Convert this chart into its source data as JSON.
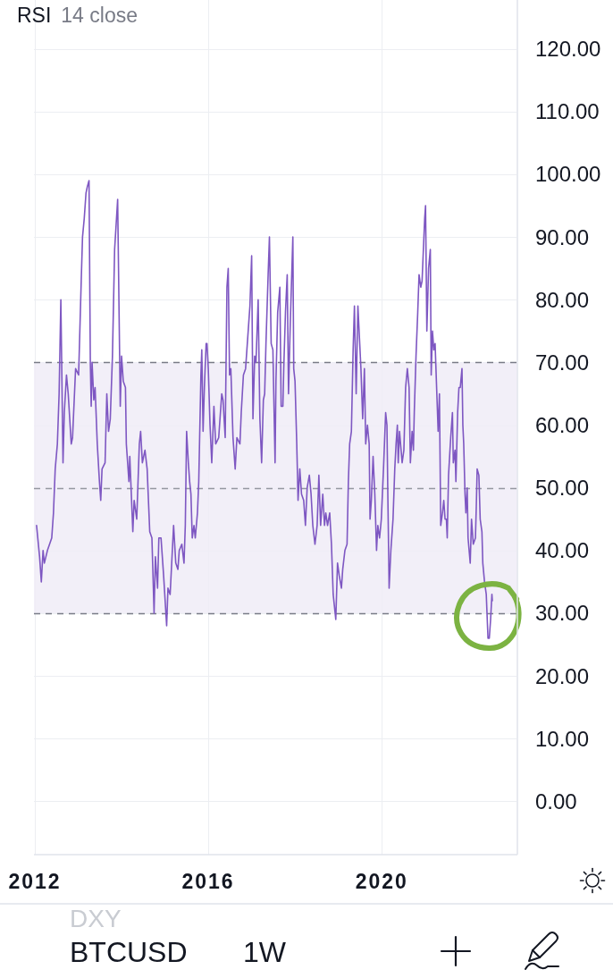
{
  "chart_data": {
    "type": "line",
    "title": "RSI",
    "subtitle": "14 close",
    "x": [
      2012.04,
      2012.11,
      2012.15,
      2012.19,
      2012.22,
      2012.29,
      2012.39,
      2012.43,
      2012.47,
      2012.52,
      2012.56,
      2012.6,
      2012.65,
      2012.68,
      2012.73,
      2012.77,
      2012.84,
      2012.87,
      2012.94,
      2013.01,
      2013.07,
      2013.1,
      2013.14,
      2013.18,
      2013.21,
      2013.25,
      2013.28,
      2013.3,
      2013.32,
      2013.36,
      2013.39,
      2013.44,
      2013.49,
      2013.52,
      2013.55,
      2013.62,
      2013.66,
      2013.7,
      2013.74,
      2013.79,
      2013.84,
      2013.91,
      2013.97,
      2014.0,
      2014.04,
      2014.09,
      2014.11,
      2014.17,
      2014.19,
      2014.26,
      2014.29,
      2014.35,
      2014.41,
      2014.44,
      2014.48,
      2014.54,
      2014.59,
      2014.65,
      2014.7,
      2014.75,
      2014.78,
      2014.83,
      2014.86,
      2014.91,
      2014.97,
      2015.04,
      2015.07,
      2015.12,
      2015.2,
      2015.25,
      2015.3,
      2015.33,
      2015.39,
      2015.44,
      2015.47,
      2015.5,
      2015.54,
      2015.57,
      2015.6,
      2015.63,
      2015.67,
      2015.7,
      2015.75,
      2015.78,
      2015.83,
      2015.85,
      2015.88,
      2015.91,
      2015.95,
      2015.97,
      2016.0,
      2016.04,
      2016.08,
      2016.13,
      2016.17,
      2016.24,
      2016.31,
      2016.34,
      2016.39,
      2016.43,
      2016.46,
      2016.49,
      2016.52,
      2016.57,
      2016.62,
      2016.66,
      2016.73,
      2016.76,
      2016.81,
      2016.86,
      2016.92,
      2016.96,
      2017.0,
      2017.03,
      2017.07,
      2017.1,
      2017.15,
      2017.19,
      2017.23,
      2017.27,
      2017.3,
      2017.33,
      2017.38,
      2017.41,
      2017.45,
      2017.49,
      2017.54,
      2017.56,
      2017.6,
      2017.65,
      2017.68,
      2017.72,
      2017.74,
      2017.78,
      2017.82,
      2017.85,
      2017.89,
      2017.95,
      2017.97,
      2018.0,
      2018.04,
      2018.07,
      2018.11,
      2018.15,
      2018.2,
      2018.24,
      2018.28,
      2018.33,
      2018.37,
      2018.41,
      2018.46,
      2018.51,
      2018.55,
      2018.59,
      2018.64,
      2018.68,
      2018.71,
      2018.75,
      2018.8,
      2018.84,
      2018.88,
      2018.91,
      2018.94,
      2018.98,
      2019.02,
      2019.07,
      2019.1,
      2019.15,
      2019.2,
      2019.23,
      2019.26,
      2019.3,
      2019.34,
      2019.37,
      2019.41,
      2019.45,
      2019.52,
      2019.56,
      2019.6,
      2019.63,
      2019.67,
      2019.71,
      2019.73,
      2019.76,
      2019.8,
      2019.84,
      2019.88,
      2019.91,
      2019.95,
      2019.99,
      2020.04,
      2020.09,
      2020.12,
      2020.14,
      2020.17,
      2020.21,
      2020.26,
      2020.3,
      2020.33,
      2020.36,
      2020.38,
      2020.41,
      2020.47,
      2020.51,
      2020.55,
      2020.59,
      2020.63,
      2020.66,
      2020.7,
      2020.73,
      2020.75,
      2020.79,
      2020.83,
      2020.86,
      2020.9,
      2020.93,
      2020.96,
      2020.99,
      2021.01,
      2021.04,
      2021.08,
      2021.12,
      2021.14,
      2021.17,
      2021.2,
      2021.23,
      2021.27,
      2021.3,
      2021.33,
      2021.36,
      2021.4,
      2021.43,
      2021.46,
      2021.49,
      2021.51,
      2021.54,
      2021.59,
      2021.63,
      2021.65,
      2021.69,
      2021.71,
      2021.75,
      2021.78,
      2021.81,
      2021.85,
      2021.87,
      2021.89,
      2021.92,
      2021.94,
      2021.97,
      2021.99,
      2022.04,
      2022.07,
      2022.11,
      2022.16,
      2022.18,
      2022.2,
      2022.24,
      2022.27,
      2022.31,
      2022.33,
      2022.37,
      2022.41,
      2022.45,
      2022.48,
      2022.51,
      2022.54,
      2022.55
    ],
    "values": [
      44,
      39,
      35,
      40,
      38,
      40,
      42,
      46,
      53,
      57,
      65,
      80,
      54,
      62,
      68,
      65,
      57,
      58,
      69,
      68,
      83,
      90,
      93,
      97,
      98,
      99,
      70,
      63,
      70,
      64,
      66,
      57,
      51,
      48,
      53,
      54,
      65,
      59,
      61,
      71,
      88,
      96,
      63,
      71,
      67,
      66,
      57,
      51,
      55,
      43,
      48,
      45,
      57,
      59,
      54,
      56,
      53,
      43,
      42,
      30,
      39,
      34,
      42,
      42,
      36,
      28,
      34,
      33,
      44,
      38,
      37,
      40,
      41,
      38,
      44,
      59,
      54,
      51,
      49,
      42,
      44,
      42,
      46,
      51,
      68,
      72,
      59,
      66,
      73,
      73,
      69,
      60,
      54,
      63,
      57,
      58,
      65,
      64,
      58,
      82,
      85,
      68,
      69,
      58,
      53,
      58,
      57,
      62,
      68,
      69,
      75,
      79,
      87,
      61,
      71,
      70,
      80,
      61,
      54,
      64,
      65,
      73,
      84,
      90,
      73,
      72,
      54,
      67,
      78,
      82,
      63,
      63,
      69,
      78,
      84,
      65,
      76,
      90,
      69,
      67,
      57,
      48,
      53,
      49,
      48,
      44,
      50,
      52,
      49,
      44,
      41,
      44,
      52,
      44,
      49,
      44,
      46,
      44,
      46,
      41,
      33,
      31,
      29,
      38,
      36,
      34,
      37,
      40,
      41,
      51,
      57,
      59,
      72,
      79,
      65,
      79,
      69,
      61,
      69,
      57,
      60,
      57,
      45,
      48,
      55,
      49,
      40,
      44,
      42,
      45,
      53,
      62,
      60,
      49,
      34,
      40,
      45,
      53,
      57,
      60,
      54,
      59,
      54,
      56,
      66,
      69,
      66,
      54,
      59,
      56,
      62,
      71,
      78,
      84,
      82,
      83,
      88,
      93,
      95,
      75,
      85,
      88,
      68,
      75,
      72,
      73,
      65,
      59,
      65,
      44,
      46,
      48,
      45,
      45,
      42,
      52,
      58,
      62,
      54,
      56,
      51,
      62,
      66,
      66,
      69,
      60,
      57,
      49,
      46,
      50,
      42,
      38,
      45,
      41,
      42,
      47,
      53,
      52,
      45,
      43,
      38,
      35,
      33,
      26,
      26,
      29,
      33,
      32
    ],
    "color": "#7e57c2",
    "xlim": [
      2011.98,
      2023.107
    ],
    "xticks": [
      2012,
      2016,
      2020
    ],
    "ylim": [
      -8.5,
      127.8
    ],
    "yticks": [
      {
        "value": 0,
        "label": "0.00"
      },
      {
        "value": 10,
        "label": "10.00"
      },
      {
        "value": 20,
        "label": "20.00"
      },
      {
        "value": 30,
        "label": "30.00"
      },
      {
        "value": 40,
        "label": "40.00"
      },
      {
        "value": 50,
        "label": "50.00"
      },
      {
        "value": 60,
        "label": "60.00"
      },
      {
        "value": 70,
        "label": "70.00"
      },
      {
        "value": 80,
        "label": "80.00"
      },
      {
        "value": 90,
        "label": "90.00"
      },
      {
        "value": 100,
        "label": "100.00"
      },
      {
        "value": 110,
        "label": "110.00"
      },
      {
        "value": 120,
        "label": "120.00"
      }
    ],
    "grid": true,
    "bands": [
      {
        "axis": "y",
        "from": 30,
        "to": 70,
        "color": "#f0ecf7"
      }
    ],
    "ref_lines": [
      {
        "axis": "y",
        "value": 50,
        "color": "#9598a1",
        "line_style": "dashed"
      }
    ],
    "annotations": [
      "DXY",
      "BTCUSD",
      "1W"
    ]
  }
}
